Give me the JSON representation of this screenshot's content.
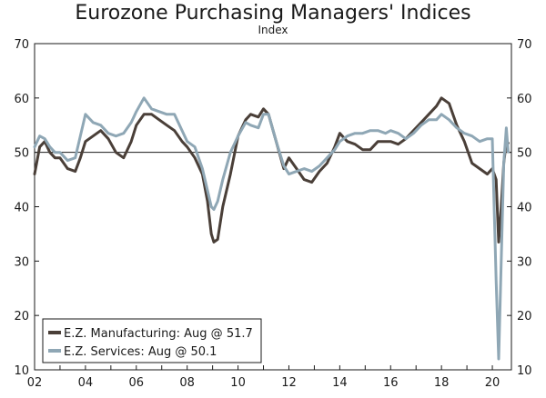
{
  "chart_data": {
    "type": "line",
    "title": "Eurozone Purchasing Managers' Indices",
    "subtitle": "Index",
    "ylim": [
      10,
      70
    ],
    "yticks": [
      10,
      20,
      30,
      40,
      50,
      60,
      70
    ],
    "xlim": [
      2002.0,
      2020.75
    ],
    "xticks": [
      2002,
      2004,
      2006,
      2008,
      2010,
      2012,
      2014,
      2016,
      2018,
      2020
    ],
    "xtick_labels": [
      "02",
      "04",
      "06",
      "08",
      "10",
      "12",
      "14",
      "16",
      "18",
      "20"
    ],
    "reference_line": 50,
    "legend_position": "bottom-left",
    "series": [
      {
        "name": "E.Z. Manufacturing",
        "legend_label": "E.Z. Manufacturing: Aug @ 51.7",
        "color": "#4a3f38",
        "x": [
          2002.0,
          2002.2,
          2002.4,
          2002.6,
          2002.8,
          2003.0,
          2003.3,
          2003.6,
          2003.8,
          2004.0,
          2004.3,
          2004.6,
          2004.9,
          2005.2,
          2005.5,
          2005.8,
          2006.0,
          2006.3,
          2006.6,
          2006.9,
          2007.2,
          2007.5,
          2007.8,
          2008.0,
          2008.3,
          2008.6,
          2008.8,
          2008.95,
          2009.05,
          2009.2,
          2009.4,
          2009.7,
          2010.0,
          2010.3,
          2010.5,
          2010.8,
          2011.0,
          2011.2,
          2011.5,
          2011.8,
          2012.0,
          2012.3,
          2012.6,
          2012.9,
          2013.2,
          2013.5,
          2013.8,
          2014.0,
          2014.3,
          2014.6,
          2014.9,
          2015.2,
          2015.5,
          2015.8,
          2016.0,
          2016.3,
          2016.6,
          2016.9,
          2017.2,
          2017.5,
          2017.8,
          2018.0,
          2018.3,
          2018.6,
          2018.9,
          2019.2,
          2019.5,
          2019.8,
          2020.0,
          2020.15,
          2020.25,
          2020.35,
          2020.45,
          2020.55,
          2020.62
        ],
        "y": [
          46,
          51,
          52,
          50,
          49,
          49,
          47,
          46.5,
          49,
          52,
          53,
          54,
          52.5,
          50,
          49,
          52,
          55,
          57,
          57,
          56,
          55,
          54,
          52,
          51,
          49,
          46,
          41,
          35,
          33.5,
          34,
          40,
          46,
          53,
          56,
          57,
          56.5,
          58,
          57,
          52,
          47,
          49,
          47,
          45,
          44.5,
          46.5,
          48,
          51,
          53.5,
          52,
          51.5,
          50.5,
          50.5,
          52,
          52,
          52,
          51.5,
          52.5,
          54,
          55.5,
          57,
          58.5,
          60,
          59,
          55,
          52,
          48,
          47,
          46,
          47,
          45,
          33.5,
          40,
          48,
          52,
          51.7
        ]
      },
      {
        "name": "E.Z. Services",
        "legend_label": "E.Z. Services: Aug @ 50.1",
        "color": "#8fa7b5",
        "x": [
          2002.0,
          2002.2,
          2002.4,
          2002.6,
          2002.8,
          2003.0,
          2003.3,
          2003.6,
          2003.8,
          2004.0,
          2004.3,
          2004.6,
          2004.9,
          2005.2,
          2005.5,
          2005.8,
          2006.0,
          2006.3,
          2006.6,
          2006.9,
          2007.2,
          2007.5,
          2007.8,
          2008.0,
          2008.3,
          2008.6,
          2008.8,
          2008.95,
          2009.05,
          2009.2,
          2009.4,
          2009.7,
          2010.0,
          2010.3,
          2010.5,
          2010.8,
          2011.0,
          2011.2,
          2011.5,
          2011.8,
          2012.0,
          2012.3,
          2012.6,
          2012.9,
          2013.2,
          2013.5,
          2013.8,
          2014.0,
          2014.3,
          2014.6,
          2014.9,
          2015.2,
          2015.5,
          2015.8,
          2016.0,
          2016.3,
          2016.6,
          2016.9,
          2017.2,
          2017.5,
          2017.8,
          2018.0,
          2018.3,
          2018.6,
          2018.9,
          2019.2,
          2019.5,
          2019.8,
          2020.0,
          2020.15,
          2020.25,
          2020.35,
          2020.45,
          2020.55,
          2020.62
        ],
        "y": [
          51,
          53,
          52.5,
          51,
          50,
          50,
          48.5,
          49,
          53,
          57,
          55.5,
          55,
          53.5,
          53,
          53.5,
          55.5,
          57.5,
          60,
          58,
          57.5,
          57,
          57,
          54,
          52,
          51,
          47,
          43,
          40,
          39.5,
          41,
          45,
          50,
          53,
          55.5,
          55,
          54.5,
          57,
          57,
          52,
          47.5,
          46,
          46.5,
          47,
          46.5,
          47.5,
          49,
          50.5,
          52,
          53,
          53.5,
          53.5,
          54,
          54,
          53.5,
          54,
          53.5,
          52.5,
          53.5,
          55,
          56,
          56,
          57,
          56,
          54.5,
          53.5,
          53,
          52,
          52.5,
          52.5,
          26.5,
          12,
          30,
          48,
          54.5,
          50.1
        ]
      }
    ]
  }
}
